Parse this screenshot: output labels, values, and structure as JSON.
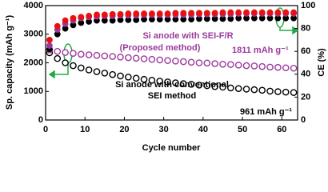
{
  "chart_data": {
    "type": "scatter",
    "x_label": "Cycle number",
    "y_label": "Sp. capacity (mAh g⁻¹)",
    "y2_label": "CE (%)",
    "x": [
      1,
      3,
      5,
      7,
      9,
      11,
      13,
      15,
      17,
      19,
      21,
      23,
      25,
      27,
      29,
      31,
      33,
      35,
      37,
      39,
      41,
      43,
      45,
      47,
      49,
      51,
      53,
      55,
      57,
      59,
      61,
      63
    ],
    "xlim": [
      0,
      64
    ],
    "xticks": [
      0,
      10,
      20,
      30,
      40,
      50,
      60
    ],
    "ylim": [
      0,
      4000
    ],
    "yticks": [
      0,
      1000,
      2000,
      3000,
      4000
    ],
    "y2lim": [
      0,
      100
    ],
    "y2ticks": [
      0,
      20,
      40,
      60,
      80,
      100
    ],
    "series": [
      {
        "color": "#000000",
        "marker": "open",
        "values": [
          2350,
          2150,
          2000,
          1900,
          1820,
          1750,
          1690,
          1640,
          1590,
          1540,
          1500,
          1460,
          1420,
          1390,
          1360,
          1330,
          1300,
          1270,
          1250,
          1220,
          1200,
          1170,
          1150,
          1120,
          1100,
          1080,
          1060,
          1040,
          1010,
          990,
          975,
          961
        ]
      },
      {
        "color": "#9b3a9b",
        "marker": "open",
        "values": [
          2450,
          2400,
          2360,
          2330,
          2300,
          2280,
          2260,
          2240,
          2220,
          2200,
          2180,
          2160,
          2140,
          2120,
          2100,
          2080,
          2060,
          2040,
          2020,
          2000,
          1990,
          1970,
          1950,
          1940,
          1920,
          1900,
          1890,
          1870,
          1850,
          1840,
          1825,
          1811
        ]
      },
      {
        "color": "#000000",
        "marker": "filled",
        "axis": "y2",
        "values": [
          62,
          75,
          80,
          83,
          85,
          86,
          87,
          87,
          87,
          87.5,
          87.5,
          87.5,
          88,
          88,
          88,
          88,
          88,
          88,
          88,
          88.5,
          88.5,
          88.5,
          88.5,
          88.5,
          89,
          89,
          89,
          89,
          89,
          89,
          89,
          89
        ]
      },
      {
        "color": "#9b3a9b",
        "marker": "filled",
        "axis": "y2",
        "values": [
          65,
          79,
          84,
          87,
          89,
          90,
          90.5,
          91,
          91,
          91.5,
          91.5,
          91.5,
          92,
          92,
          92,
          92,
          92,
          92,
          92,
          92.5,
          92.5,
          92.5,
          92.5,
          92.5,
          93,
          93,
          93,
          93,
          93,
          93,
          93,
          93
        ]
      },
      {
        "color": "#e81010",
        "marker": "filled",
        "axis": "y2",
        "values": [
          70,
          82,
          87,
          89,
          90,
          91,
          92,
          92,
          92.5,
          92.5,
          93,
          93,
          93,
          93,
          93,
          93,
          93.5,
          93.5,
          93.5,
          93.5,
          93.5,
          93.5,
          94,
          94,
          94,
          94,
          94,
          94,
          94,
          94,
          94,
          94
        ]
      }
    ],
    "annotations": [
      {
        "text": "Si anode with SEI-F/R",
        "color": "#9b3a9b"
      },
      {
        "text": "(Proposed method)",
        "color": "#9b3a9b"
      },
      {
        "text": "1811 mAh g⁻¹",
        "color": "#9b3a9b"
      },
      {
        "text": "Si anode with conventional",
        "color": "#000000"
      },
      {
        "text": "SEI method",
        "color": "#000000"
      },
      {
        "text": "961 mAh g⁻¹",
        "color": "#000000"
      }
    ]
  }
}
